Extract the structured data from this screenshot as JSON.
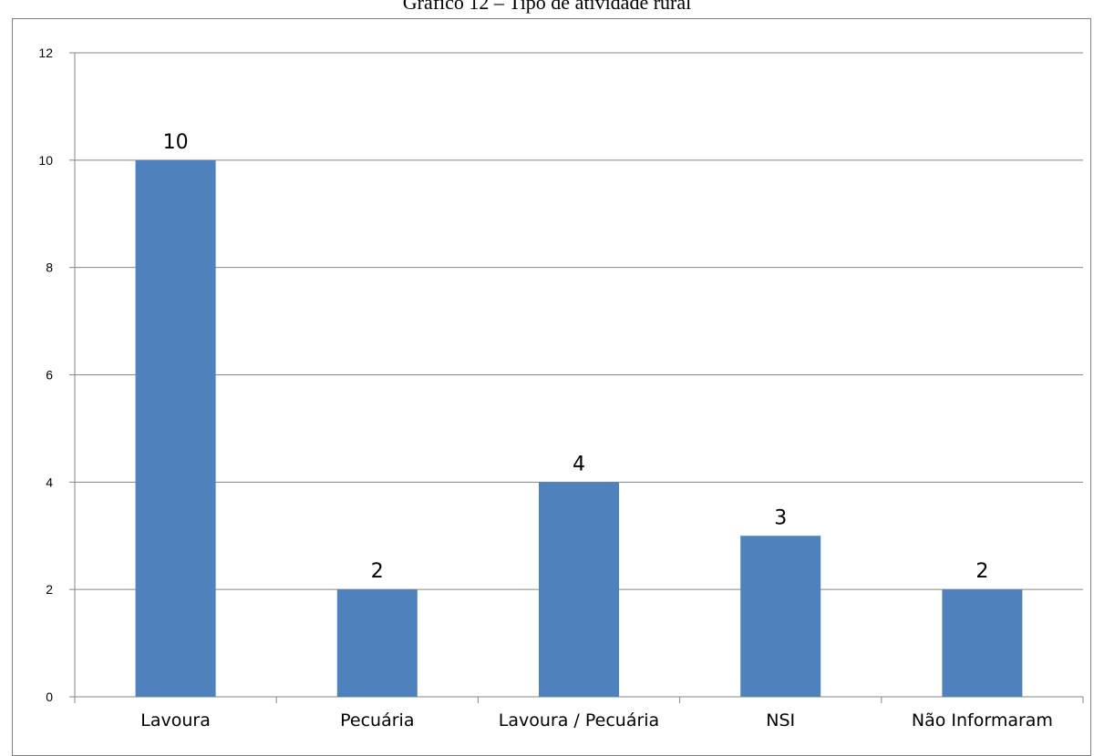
{
  "chart_data": {
    "type": "bar",
    "title": "Gráfico 12 – Tipo de atividade rural",
    "categories": [
      "Lavoura",
      "Pecuária",
      "Lavoura / Pecuária",
      "NSI",
      "Não Informaram"
    ],
    "values": [
      10,
      2,
      4,
      3,
      2
    ],
    "data_labels": [
      "10",
      "2",
      "4",
      "3",
      "2"
    ],
    "ylim": [
      0,
      12
    ],
    "yticks": [
      "0",
      "2",
      "4",
      "6",
      "8",
      "10",
      "12"
    ],
    "xlabel": "",
    "ylabel": "",
    "grid": true,
    "legend": "none",
    "bar_color": "#4f81bd",
    "grid_color": "#868686"
  }
}
